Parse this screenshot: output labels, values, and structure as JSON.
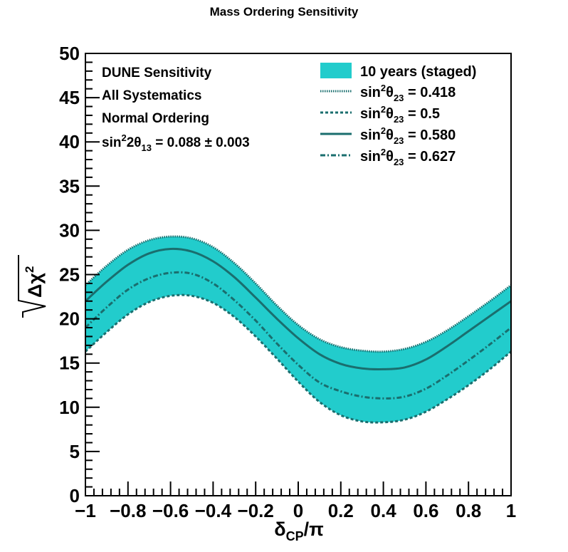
{
  "chart_data": {
    "type": "line",
    "title": "Mass Ordering Sensitivity",
    "xlabel": "δCP/π",
    "ylabel": "√Δχ²",
    "xlim": [
      -1,
      1
    ],
    "ylim": [
      0,
      50
    ],
    "x_ticks": [
      "−1",
      "−0.8",
      "−0.6",
      "−0.4",
      "−0.2",
      "0",
      "0.2",
      "0.4",
      "0.6",
      "0.8",
      "1"
    ],
    "y_ticks": [
      "0",
      "5",
      "10",
      "15",
      "20",
      "25",
      "30",
      "35",
      "40",
      "45",
      "50"
    ],
    "info_lines": [
      "DUNE Sensitivity",
      "All Systematics",
      "Normal Ordering",
      "sin²2θ13 = 0.088 ± 0.003"
    ],
    "band": {
      "name": "10 years (staged)",
      "color": "#22cccc",
      "x": [
        -1.0,
        -0.9,
        -0.8,
        -0.7,
        -0.6,
        -0.5,
        -0.4,
        -0.3,
        -0.2,
        -0.1,
        0.0,
        0.1,
        0.2,
        0.3,
        0.4,
        0.5,
        0.6,
        0.7,
        0.8,
        0.9,
        1.0
      ],
      "lower": [
        16.3,
        18.5,
        20.5,
        21.9,
        22.6,
        22.6,
        21.8,
        20.2,
        18.0,
        15.5,
        12.9,
        10.6,
        9.1,
        8.4,
        8.3,
        8.6,
        9.5,
        10.9,
        12.5,
        14.3,
        16.3
      ],
      "upper": [
        23.8,
        26.0,
        27.8,
        28.9,
        29.3,
        29.1,
        28.1,
        26.3,
        24.0,
        21.5,
        19.3,
        17.7,
        16.8,
        16.4,
        16.3,
        16.6,
        17.4,
        18.7,
        20.3,
        22.0,
        23.8
      ]
    },
    "series": [
      {
        "name": "sin²θ23 = 0.418",
        "style": "dotted",
        "color": "#1a6e6e",
        "values": [
          23.8,
          26.0,
          27.8,
          28.9,
          29.3,
          29.1,
          28.1,
          26.3,
          24.0,
          21.5,
          19.3,
          17.7,
          16.8,
          16.4,
          16.3,
          16.6,
          17.4,
          18.7,
          20.3,
          22.0,
          23.8
        ]
      },
      {
        "name": "sin²θ23 = 0.5",
        "style": "dashed",
        "color": "#1a6e6e",
        "values": [
          16.3,
          18.5,
          20.5,
          21.9,
          22.6,
          22.6,
          21.8,
          20.2,
          18.0,
          15.5,
          12.9,
          10.6,
          9.1,
          8.4,
          8.3,
          8.6,
          9.5,
          10.9,
          12.5,
          14.3,
          16.3
        ]
      },
      {
        "name": "sin²θ23 = 0.580",
        "style": "solid",
        "color": "#1a6e6e",
        "values": [
          22.0,
          24.2,
          26.1,
          27.4,
          27.9,
          27.6,
          26.5,
          24.7,
          22.4,
          20.0,
          17.8,
          16.0,
          14.9,
          14.4,
          14.3,
          14.5,
          15.4,
          16.9,
          18.6,
          20.3,
          22.0
        ]
      },
      {
        "name": "sin²θ23 = 0.627",
        "style": "dashdot",
        "color": "#1a6e6e",
        "values": [
          19.0,
          21.3,
          23.3,
          24.6,
          25.2,
          25.1,
          24.0,
          22.1,
          19.8,
          17.2,
          14.8,
          12.8,
          11.8,
          11.2,
          11.0,
          11.2,
          12.1,
          13.6,
          15.3,
          17.1,
          19.0
        ]
      }
    ],
    "legend_position": "top-right",
    "grid": false
  }
}
